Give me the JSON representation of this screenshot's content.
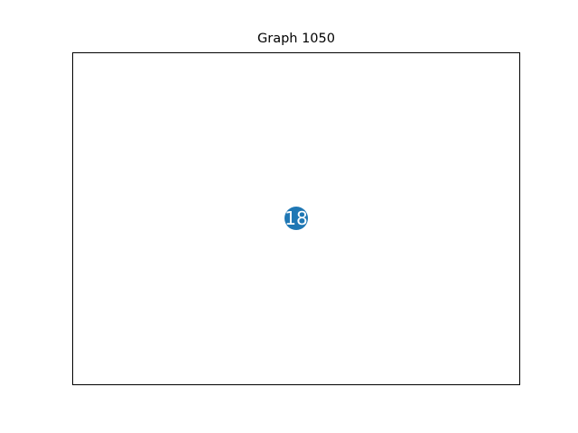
{
  "graph": {
    "title": "Graph 1050",
    "node_color": "#1f77b4",
    "label_color": "#ffffff",
    "nodes": [
      {
        "id": "18",
        "label": "18"
      }
    ],
    "edges": []
  }
}
